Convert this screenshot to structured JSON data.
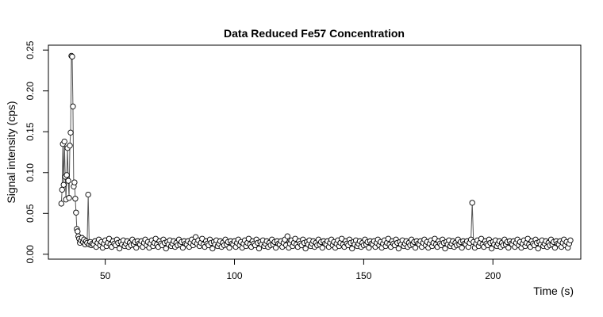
{
  "chart_data": {
    "type": "scatter",
    "title": "Data Reduced Fe57 Concentration",
    "xlabel": "Time (s)",
    "ylabel": "Signal intensity (cps)",
    "xlim": [
      28,
      234
    ],
    "ylim": [
      -0.006,
      0.256
    ],
    "x_ticks": [
      50,
      100,
      150,
      200
    ],
    "y_ticks": [
      0.0,
      0.05,
      0.1,
      0.15,
      0.2,
      0.25
    ],
    "y_tick_labels": [
      "0.00",
      "0.05",
      "0.10",
      "0.15",
      "0.20",
      "0.25"
    ],
    "grid": false,
    "legend": "none",
    "style": {
      "line_color": "#555555",
      "marker_stroke": "#000000",
      "marker_fill": "#ffffff",
      "marker": "open-circle"
    },
    "series": [
      {
        "x": [
          33.0,
          33.3,
          33.6,
          33.9,
          34.2,
          34.5,
          34.8,
          35.1,
          35.4,
          35.7,
          36.0,
          36.3,
          36.6,
          36.9,
          37.2,
          37.5,
          37.8,
          38.1,
          38.4,
          38.7,
          39.0,
          39.3,
          39.6,
          39.9,
          40.2,
          40.6,
          41.0,
          41.4,
          41.8,
          42.2,
          42.6,
          43.0,
          43.4,
          43.8,
          44.2,
          44.6,
          45.0
        ],
        "y": [
          0.062,
          0.079,
          0.135,
          0.085,
          0.138,
          0.095,
          0.067,
          0.097,
          0.13,
          0.09,
          0.069,
          0.133,
          0.149,
          0.243,
          0.242,
          0.181,
          0.083,
          0.088,
          0.068,
          0.051,
          0.031,
          0.028,
          0.022,
          0.019,
          0.014,
          0.017,
          0.02,
          0.015,
          0.018,
          0.012,
          0.016,
          0.014,
          0.073,
          0.012,
          0.015,
          0.011,
          0.013
        ]
      },
      {
        "x_start": 45.5,
        "x_step": 0.5,
        "y_base": [
          0.012,
          0.016,
          0.009,
          0.014,
          0.018,
          0.011,
          0.015,
          0.008,
          0.013,
          0.017,
          0.01,
          0.014,
          0.019,
          0.012,
          0.009,
          0.016,
          0.013,
          0.011,
          0.018,
          0.014,
          0.007,
          0.015,
          0.012,
          0.017,
          0.01,
          0.013,
          0.016,
          0.009,
          0.014,
          0.011,
          0.018,
          0.012,
          0.015,
          0.008,
          0.016,
          0.013
        ],
        "spikes": [
          {
            "x": 192.0,
            "y": 0.063
          },
          {
            "x": 120.5,
            "y": 0.022
          },
          {
            "x": 85.0,
            "y": 0.021
          }
        ]
      }
    ]
  }
}
